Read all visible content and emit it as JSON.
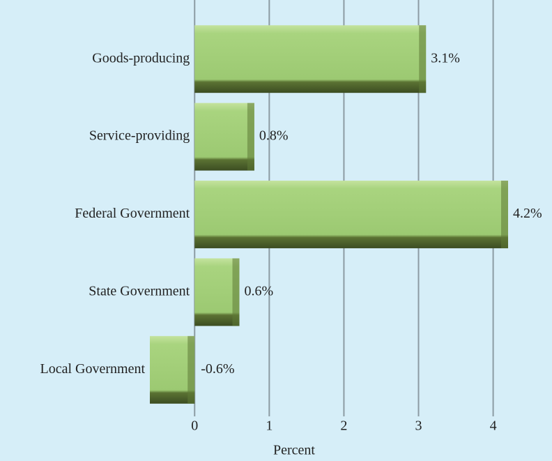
{
  "chart_data": {
    "type": "barh",
    "categories": [
      "Goods-producing",
      "Service-providing",
      "Federal Government",
      "State Government",
      "Local Government"
    ],
    "values": [
      3.1,
      0.8,
      4.2,
      0.6,
      -0.6
    ],
    "value_labels": [
      "3.1%",
      "0.8%",
      "4.2%",
      "0.6%",
      "-0.6%"
    ],
    "color": "#a4d07a",
    "xlabel": "Percent",
    "xlim": [
      -0.6,
      4.2
    ],
    "xticks": [
      0,
      1,
      2,
      3,
      4
    ],
    "grid": true
  }
}
